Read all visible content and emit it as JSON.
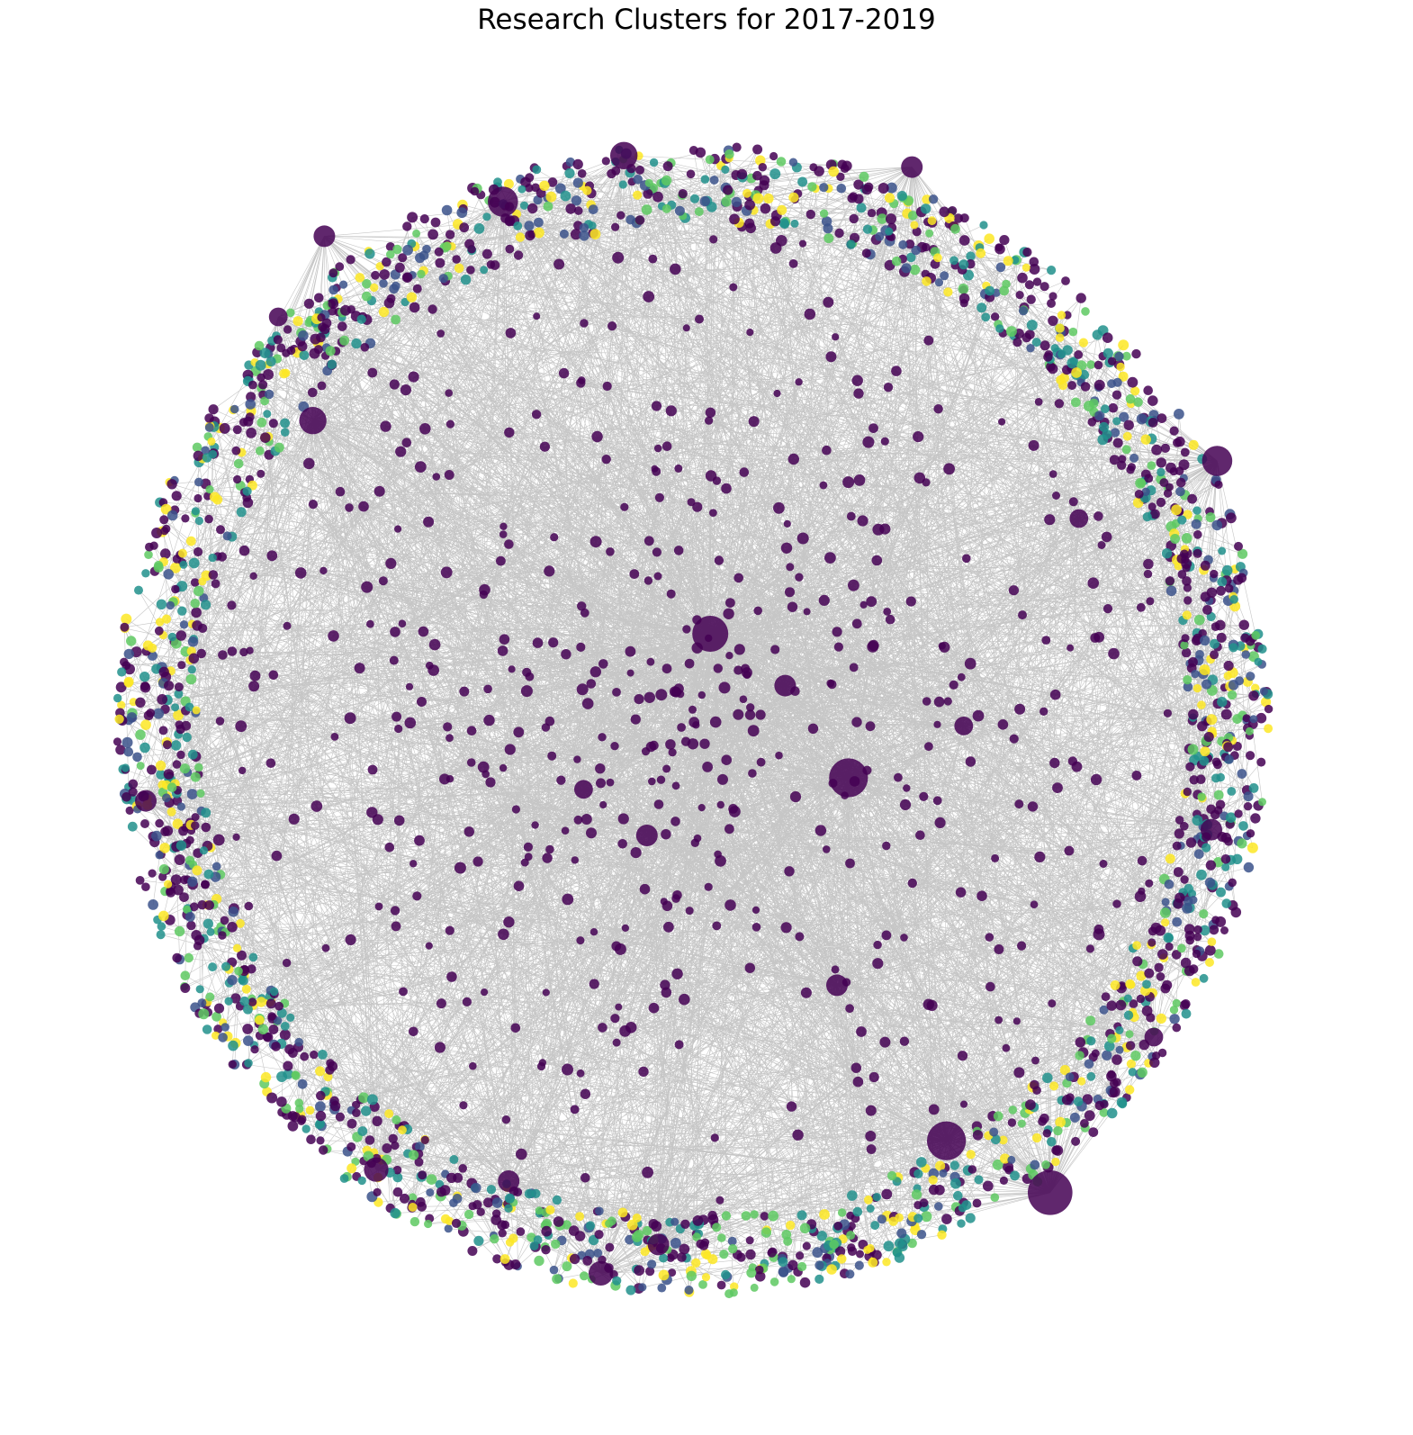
{
  "title": "Research Clusters for 2017-2019",
  "chart_data": {
    "type": "network",
    "title": "Research Clusters for 2017-2019",
    "axes_visible": false,
    "legend": "none",
    "edge_color": "#808080",
    "node_colormap": "viridis",
    "cluster_palette": [
      "#440154",
      "#3b528b",
      "#21918c",
      "#5ec962",
      "#fde725"
    ],
    "hub_nodes": [
      {
        "id": "hub-a",
        "x": 0.03,
        "y": 0.15,
        "size": 5.0
      },
      {
        "id": "hub-b",
        "x": 0.27,
        "y": -0.1,
        "size": 5.5
      },
      {
        "id": "hub-c",
        "x": 0.62,
        "y": -0.82,
        "size": 6.5
      },
      {
        "id": "hub-d",
        "x": 0.44,
        "y": -0.73,
        "size": 5.5
      },
      {
        "id": "hub-e",
        "x": -0.66,
        "y": 0.52,
        "size": 3.5
      },
      {
        "id": "hub-f",
        "x": -0.33,
        "y": 0.9,
        "size": 4.0
      },
      {
        "id": "hub-g",
        "x": 0.91,
        "y": 0.45,
        "size": 4.0
      },
      {
        "id": "hub-h",
        "x": -0.12,
        "y": 0.98,
        "size": 3.5
      },
      {
        "id": "hub-i",
        "x": 0.38,
        "y": 0.96,
        "size": 2.5
      },
      {
        "id": "hub-j",
        "x": -0.55,
        "y": -0.78,
        "size": 3.0
      },
      {
        "id": "hub-k",
        "x": -0.16,
        "y": -0.96,
        "size": 3.0
      },
      {
        "id": "hub-l",
        "x": 0.25,
        "y": -0.46,
        "size": 2.5
      },
      {
        "id": "hub-m",
        "x": -0.08,
        "y": -0.2,
        "size": 2.5
      },
      {
        "id": "hub-n",
        "x": 0.16,
        "y": 0.06,
        "size": 2.5
      },
      {
        "id": "hub-o",
        "x": -0.19,
        "y": -0.12,
        "size": 2.0
      },
      {
        "id": "hub-p",
        "x": -0.32,
        "y": -0.8,
        "size": 2.5
      },
      {
        "id": "hub-q",
        "x": -0.06,
        "y": -0.91,
        "size": 2.5
      },
      {
        "id": "hub-r",
        "x": 0.47,
        "y": -0.01,
        "size": 2.0
      },
      {
        "id": "hub-s",
        "x": -0.64,
        "y": 0.84,
        "size": 2.5
      },
      {
        "id": "hub-t",
        "x": -0.95,
        "y": -0.14,
        "size": 2.5
      },
      {
        "id": "hub-u",
        "x": 0.9,
        "y": -0.19,
        "size": 2.5
      },
      {
        "id": "hub-v",
        "x": 0.67,
        "y": 0.35,
        "size": 2.0
      },
      {
        "id": "hub-w",
        "x": 0.8,
        "y": -0.55,
        "size": 2.0
      },
      {
        "id": "hub-x",
        "x": -0.72,
        "y": 0.7,
        "size": 2.0
      }
    ]
  }
}
